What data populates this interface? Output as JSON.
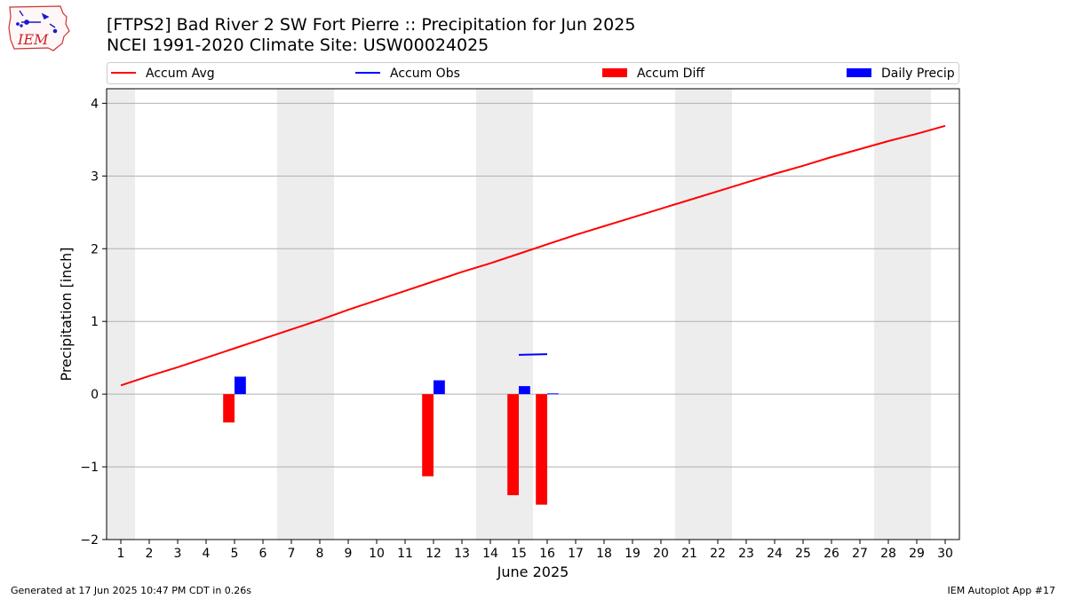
{
  "header": {
    "logo_text": "IEM",
    "title_line1": "[FTPS2] Bad River 2 SW Fort Pierre :: Precipitation for Jun 2025",
    "title_line2": "NCEI 1991-2020 Climate Site: USW00024025"
  },
  "footer": {
    "left": "Generated at 17 Jun 2025 10:47 PM CDT in 0.26s",
    "right": "IEM Autoplot App #17"
  },
  "colors": {
    "accum_avg": "#ff0000",
    "accum_obs": "#0000ff",
    "accum_diff": "#ff0000",
    "daily_precip": "#0000ff",
    "weekend_shade": "#ededed",
    "grid": "#b0b0b0"
  },
  "chart_data": {
    "type": "line",
    "xlabel": "June 2025",
    "ylabel": "Precipitation [inch]",
    "xlim": [
      0.5,
      30.5
    ],
    "ylim": [
      -2,
      4.2
    ],
    "x_ticks": [
      1,
      2,
      3,
      4,
      5,
      6,
      7,
      8,
      9,
      10,
      11,
      12,
      13,
      14,
      15,
      16,
      17,
      18,
      19,
      20,
      21,
      22,
      23,
      24,
      25,
      26,
      27,
      28,
      29,
      30
    ],
    "y_ticks": [
      -2,
      -1,
      0,
      1,
      2,
      3,
      4
    ],
    "y_tick_labels": [
      "−2",
      "−1",
      "0",
      "1",
      "2",
      "3",
      "4"
    ],
    "grid": "horizontal",
    "legend": {
      "placement": "top",
      "entries": [
        "Accum Avg",
        "Accum Obs",
        "Accum Diff",
        "Daily Precip"
      ]
    },
    "shaded_day_ranges": [
      [
        0.5,
        1.5
      ],
      [
        6.5,
        8.5
      ],
      [
        13.5,
        15.5
      ],
      [
        20.5,
        22.5
      ],
      [
        27.5,
        29.5
      ]
    ],
    "series": [
      {
        "name": "Accum Avg",
        "x": [
          1,
          2,
          3,
          4,
          5,
          6,
          7,
          8,
          9,
          10,
          11,
          12,
          13,
          14,
          15,
          16,
          17,
          18,
          19,
          20,
          21,
          22,
          23,
          24,
          25,
          26,
          27,
          28,
          29,
          30
        ],
        "values": [
          0.12,
          0.25,
          0.37,
          0.5,
          0.63,
          0.76,
          0.89,
          1.02,
          1.16,
          1.29,
          1.42,
          1.55,
          1.68,
          1.8,
          1.93,
          2.06,
          2.19,
          2.31,
          2.43,
          2.55,
          2.67,
          2.79,
          2.91,
          3.03,
          3.14,
          3.26,
          3.37,
          3.48,
          3.58,
          3.69
        ]
      },
      {
        "name": "Accum Obs",
        "x": [
          15,
          16
        ],
        "values": [
          0.54,
          0.55
        ]
      },
      {
        "name": "Accum Diff",
        "x": [
          5,
          12,
          15,
          16
        ],
        "values": [
          -0.39,
          -1.13,
          -1.39,
          -1.52
        ]
      },
      {
        "name": "Daily Precip",
        "x": [
          5,
          12,
          15,
          16
        ],
        "values": [
          0.24,
          0.19,
          0.11,
          0.01
        ]
      }
    ]
  }
}
